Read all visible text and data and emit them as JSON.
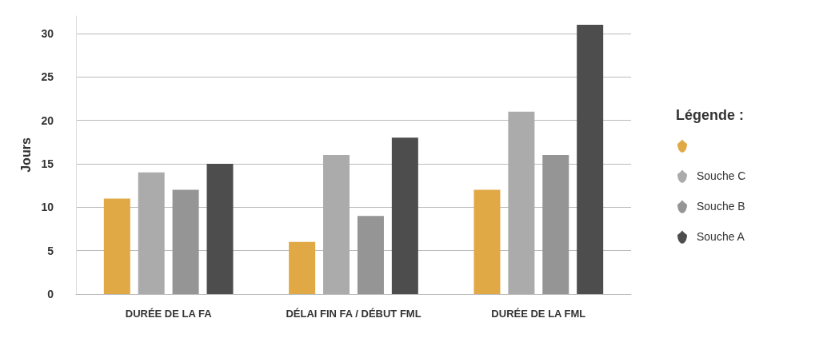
{
  "chart_data": {
    "type": "bar",
    "ylabel": "Jours",
    "legend_title": "Légende :",
    "categories": [
      "DURÉE DE LA FA",
      "DÉLAI FIN FA / DÉBUT FML",
      "DURÉE DE LA FML"
    ],
    "series": [
      {
        "color": "#e0a946",
        "values": [
          11,
          6,
          12
        ]
      },
      {
        "name": "Souche C",
        "color": "#aaabaa",
        "values": [
          14,
          16,
          21
        ]
      },
      {
        "name": "Souche B",
        "color": "#949594",
        "values": [
          12,
          9,
          16
        ]
      },
      {
        "name": "Souche A",
        "color": "#4d4d4d",
        "values": [
          15,
          18,
          31
        ]
      }
    ],
    "ylim": [
      0,
      32
    ],
    "yticks": [
      0,
      5,
      10,
      15,
      20,
      25,
      30
    ],
    "grid": "y",
    "legend": "right"
  }
}
